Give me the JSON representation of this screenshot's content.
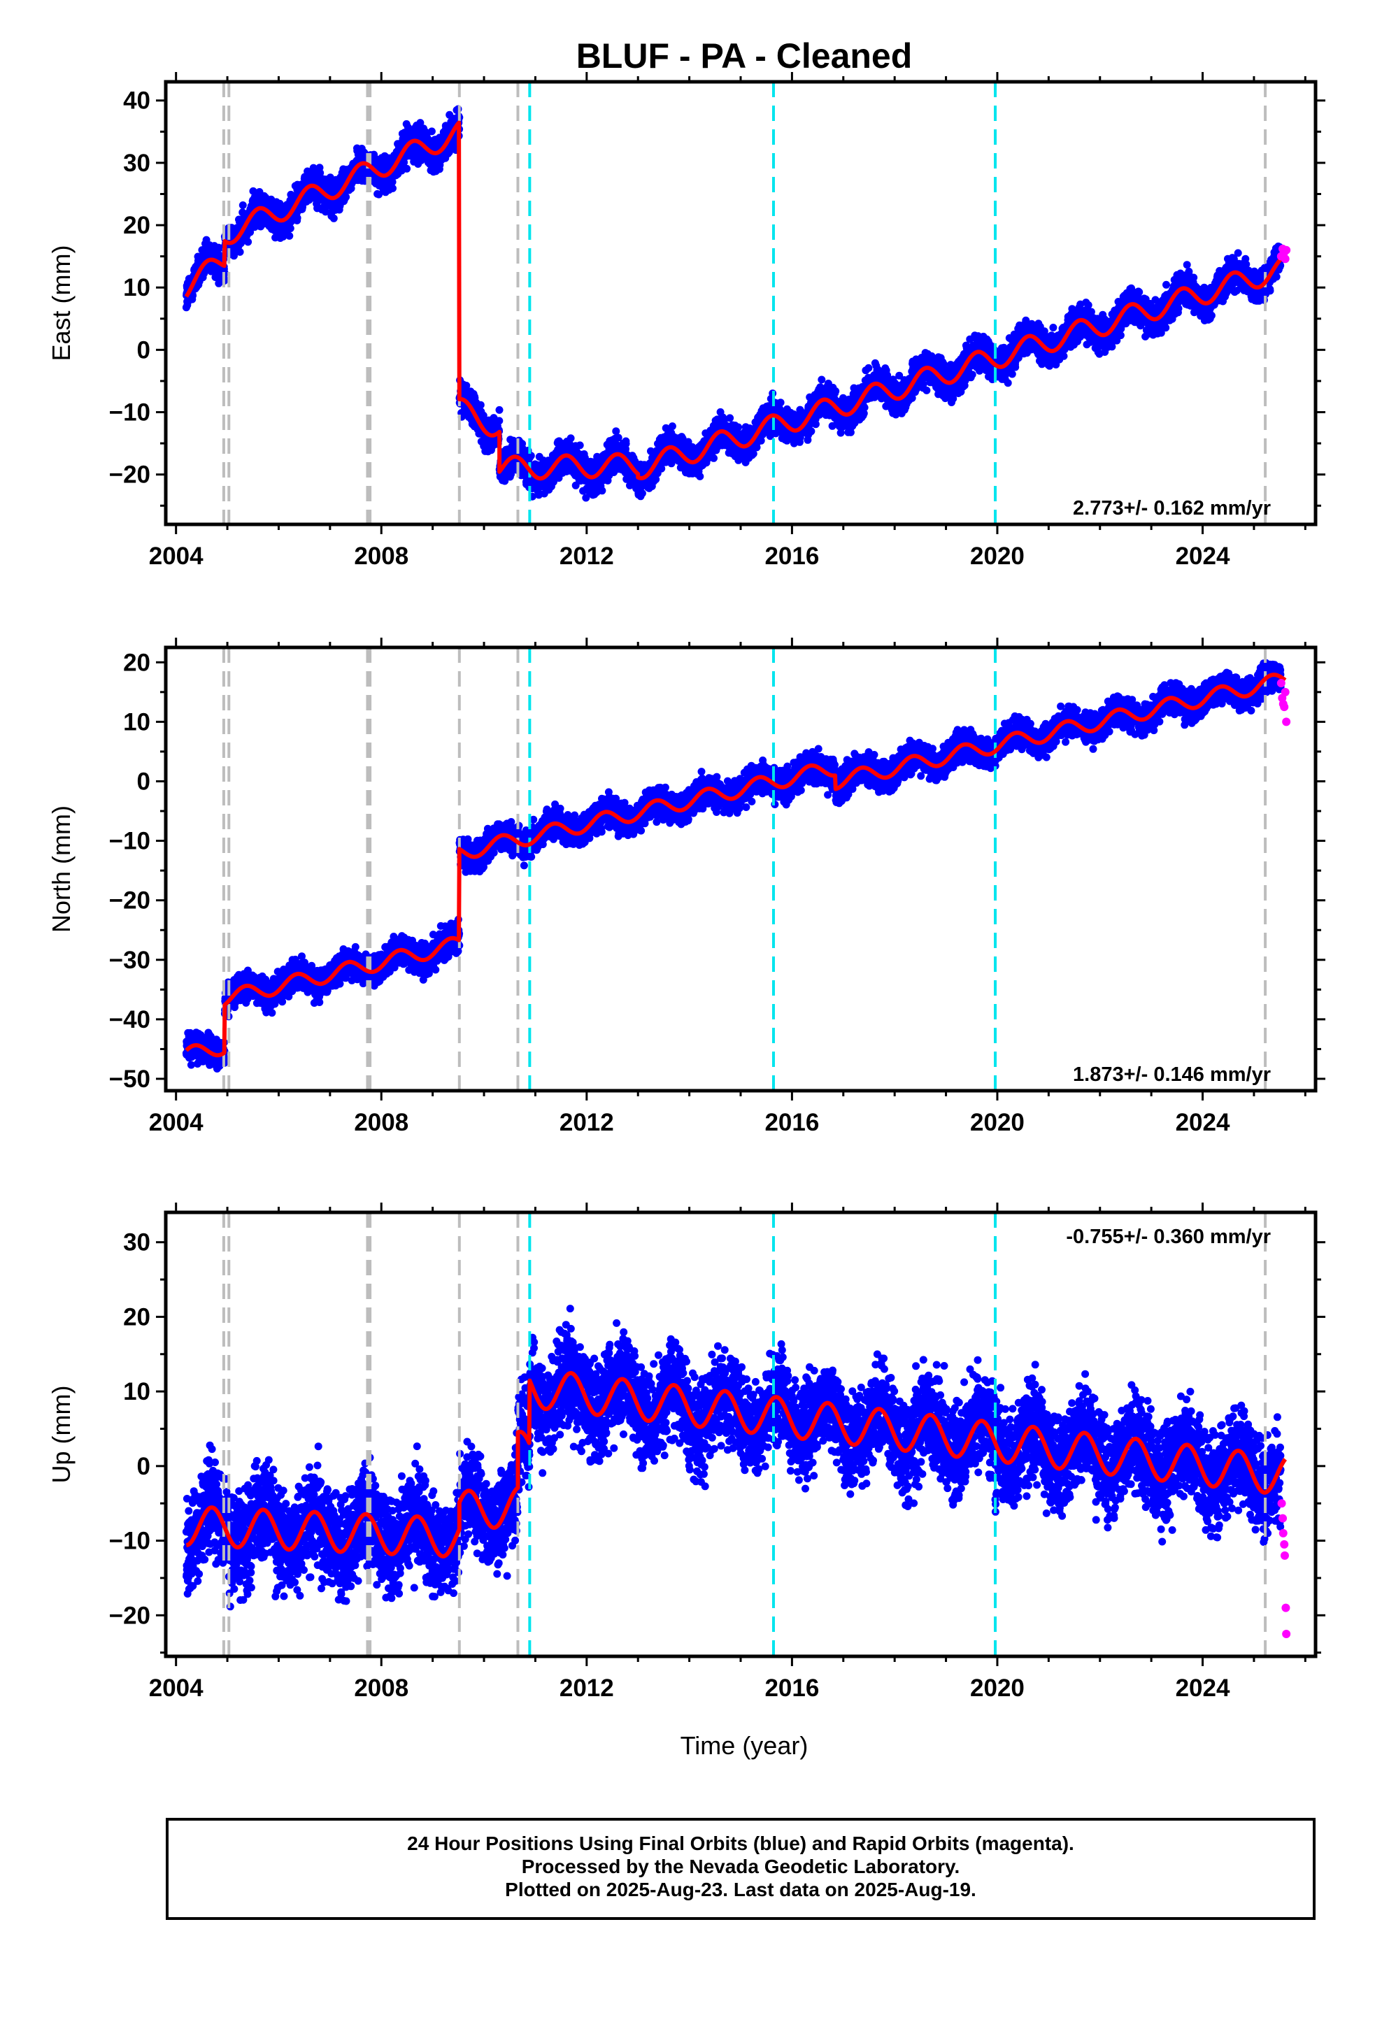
{
  "title": "BLUF  - PA - Cleaned",
  "xlabel": "Time (year)",
  "footer": {
    "line1": "24 Hour Positions Using Final Orbits (blue) and Rapid Orbits (magenta).",
    "line2": "Processed by the Nevada Geodetic Laboratory.",
    "line3": "Plotted on 2025-Aug-23. Last data on 2025-Aug-19."
  },
  "colors": {
    "final_orbits": "#0000ff",
    "rapid_orbits": "#ff00ff",
    "model": "#ff0000",
    "event_grey": "#bdbdbd",
    "event_cyan": "#00e5ee"
  },
  "chart_data": [
    {
      "type": "scatter",
      "ylabel": "East (mm)",
      "xlim": [
        2003.8,
        2026.2
      ],
      "ylim": [
        -28,
        43
      ],
      "x_ticks": [
        2004,
        2008,
        2012,
        2016,
        2020,
        2024
      ],
      "y_ticks": [
        -20,
        -10,
        0,
        10,
        20,
        30,
        40
      ],
      "rate_text": "2.773+/- 0.162 mm/yr",
      "rate_position": "bottom-right",
      "grey_event_lines": [
        2004.93,
        2005.03,
        2007.73,
        2007.78,
        2009.52,
        2010.66,
        2025.22
      ],
      "cyan_event_lines": [
        2010.89,
        2015.64,
        2019.96
      ],
      "model": {
        "segments": [
          {
            "start": 2004.2,
            "end": 2004.95,
            "v0": 10.0,
            "rate": 6.0
          },
          {
            "start": 2004.95,
            "end": 2009.52,
            "v0": 18.5,
            "rate": 3.6
          },
          {
            "start": 2009.52,
            "end": 2010.3,
            "v0": -9.5,
            "rate": -4.0
          },
          {
            "start": 2010.3,
            "end": 2013.0,
            "v0": -19.0,
            "rate": 0.2
          },
          {
            "start": 2013.0,
            "end": 2025.62,
            "v0": -19.0,
            "rate": 2.55
          }
        ],
        "annual_amplitude": 1.8,
        "annual_phase": 0.35
      },
      "final_orbits": {
        "start": 2004.2,
        "end": 2025.52,
        "scatter": 1.3
      },
      "rapid_orbits": {
        "x": [
          2025.53,
          2025.56,
          2025.58,
          2025.61,
          2025.63
        ],
        "y": [
          15.0,
          16.2,
          15.5,
          14.6,
          16.0
        ]
      }
    },
    {
      "type": "scatter",
      "ylabel": "North (mm)",
      "xlim": [
        2003.8,
        2026.2
      ],
      "ylim": [
        -52,
        22.5
      ],
      "x_ticks": [
        2004,
        2008,
        2012,
        2016,
        2020,
        2024
      ],
      "y_ticks": [
        -50,
        -40,
        -30,
        -20,
        -10,
        0,
        10,
        20
      ],
      "rate_text": "1.873+/- 0.146 mm/yr",
      "rate_position": "bottom-right",
      "grey_event_lines": [
        2004.93,
        2005.03,
        2007.73,
        2007.78,
        2009.52,
        2010.66,
        2025.22
      ],
      "cyan_event_lines": [
        2010.89,
        2015.64,
        2019.96
      ],
      "model": {
        "segments": [
          {
            "start": 2004.2,
            "end": 2004.95,
            "v0": -46.0,
            "rate": 2.0
          },
          {
            "start": 2004.95,
            "end": 2009.52,
            "v0": -36.5,
            "rate": 2.0
          },
          {
            "start": 2009.52,
            "end": 2016.85,
            "v0": -12.0,
            "rate": 1.95
          },
          {
            "start": 2016.85,
            "end": 2025.62,
            "v0": 0.0,
            "rate": 1.95
          }
        ],
        "annual_amplitude": 1.3,
        "annual_phase": 0.1
      },
      "final_orbits": {
        "start": 2004.2,
        "end": 2025.52,
        "scatter": 1.2
      },
      "rapid_orbits": {
        "x": [
          2025.53,
          2025.55,
          2025.57,
          2025.59,
          2025.61,
          2025.63
        ],
        "y": [
          16.5,
          14.0,
          13.0,
          12.5,
          15.0,
          10.0
        ]
      }
    },
    {
      "type": "scatter",
      "ylabel": "Up (mm)",
      "xlim": [
        2003.8,
        2026.2
      ],
      "ylim": [
        -25.5,
        34
      ],
      "x_ticks": [
        2004,
        2008,
        2012,
        2016,
        2020,
        2024
      ],
      "y_ticks": [
        -20,
        -10,
        0,
        10,
        20,
        30
      ],
      "rate_text": "-0.755+/- 0.360 mm/yr",
      "rate_position": "top-right",
      "grey_event_lines": [
        2004.93,
        2005.03,
        2007.73,
        2007.78,
        2009.52,
        2010.66,
        2025.22
      ],
      "cyan_event_lines": [
        2010.89,
        2015.64,
        2019.96
      ],
      "model": {
        "segments": [
          {
            "start": 2004.2,
            "end": 2009.52,
            "v0": -8.0,
            "rate": -0.3
          },
          {
            "start": 2009.52,
            "end": 2010.66,
            "v0": -6.0,
            "rate": 0.5
          },
          {
            "start": 2010.66,
            "end": 2010.89,
            "v0": 2.0,
            "rate": 0.0
          },
          {
            "start": 2010.89,
            "end": 2025.62,
            "v0": 10.5,
            "rate": -0.8
          }
        ],
        "annual_amplitude": 2.6,
        "annual_phase": 0.45
      },
      "final_orbits": {
        "start": 2004.2,
        "end": 2025.52,
        "scatter": 3.2
      },
      "rapid_orbits": {
        "x": [
          2025.54,
          2025.56,
          2025.57,
          2025.59,
          2025.6,
          2025.62,
          2025.63
        ],
        "y": [
          -5.0,
          -7.0,
          -9.0,
          -10.5,
          -12.0,
          -19.0,
          -22.5
        ]
      }
    }
  ]
}
